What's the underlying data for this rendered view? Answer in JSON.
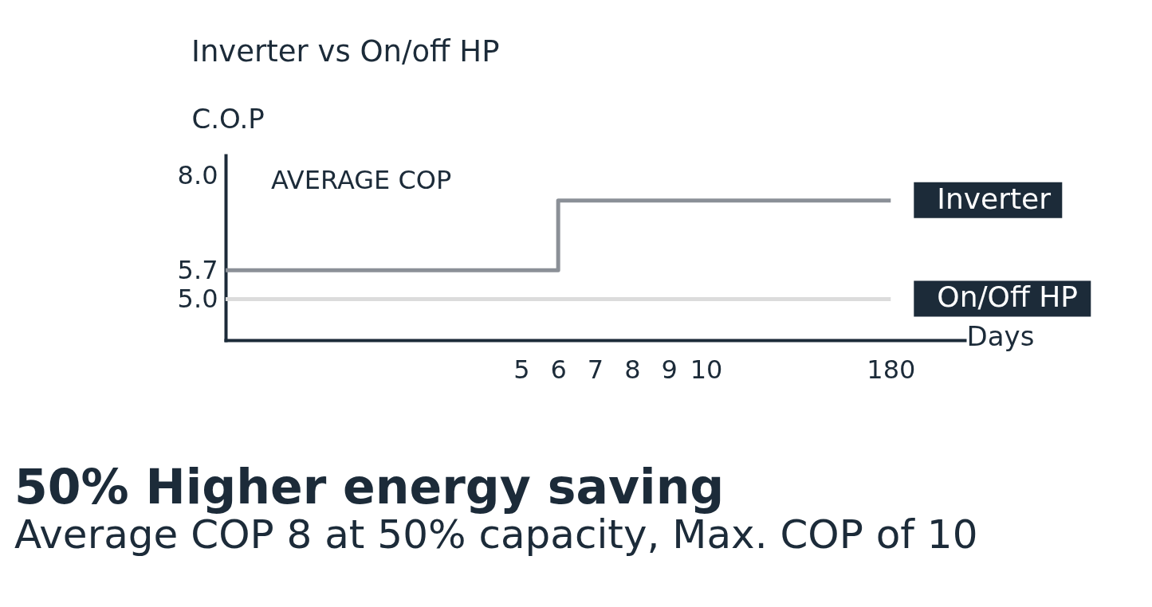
{
  "chart_data": {
    "type": "step",
    "title": "Inverter vs On/off HP",
    "ylabel": "C.O.P",
    "xlabel": "Days",
    "annotations": [
      "AVERAGE COP",
      "50% Higher energy saving",
      "Average COP 8 at 50% capacity, Max. COP of 10"
    ],
    "categories": [
      null,
      null,
      null,
      null,
      null,
      null,
      null,
      null,
      "5",
      "6",
      "7",
      "8",
      "9",
      "10",
      null,
      null,
      null,
      null,
      "180",
      null,
      null
    ],
    "series": [
      {
        "name": "Inverter",
        "color": "#8b9097",
        "values": [
          5.7,
          5.7,
          5.7,
          5.7,
          5.7,
          5.7,
          5.7,
          5.7,
          5.7,
          7.4,
          7.4,
          7.4,
          7.4,
          7.4,
          7.4,
          7.4,
          7.4,
          7.4,
          7.4,
          null,
          null
        ]
      },
      {
        "name": "On/Off HP",
        "color": "#dcdcdc",
        "values": [
          5.0,
          5.0,
          5.0,
          5.0,
          5.0,
          5.0,
          5.0,
          5.0,
          5.0,
          5.0,
          5.0,
          5.0,
          5.0,
          5.0,
          5.0,
          5.0,
          5.0,
          5.0,
          5.0,
          null,
          null
        ]
      }
    ],
    "ylim": [
      4.0,
      8.5
    ],
    "yticks": [
      {
        "value": 8,
        "label": "8.0"
      },
      5.7,
      {
        "value": 5,
        "label": "5.0"
      }
    ],
    "line_style": "solid"
  }
}
